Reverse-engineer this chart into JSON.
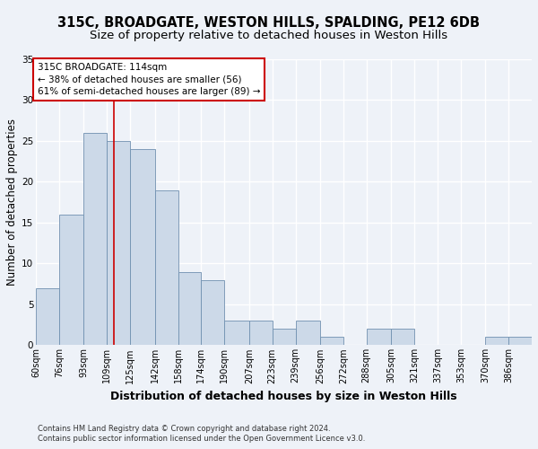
{
  "title": "315C, BROADGATE, WESTON HILLS, SPALDING, PE12 6DB",
  "subtitle": "Size of property relative to detached houses in Weston Hills",
  "xlabel": "Distribution of detached houses by size in Weston Hills",
  "ylabel": "Number of detached properties",
  "footnote1": "Contains HM Land Registry data © Crown copyright and database right 2024.",
  "footnote2": "Contains public sector information licensed under the Open Government Licence v3.0.",
  "annotation_line1": "315C BROADGATE: 114sqm",
  "annotation_line2": "← 38% of detached houses are smaller (56)",
  "annotation_line3": "61% of semi-detached houses are larger (89) →",
  "bar_color": "#ccd9e8",
  "bar_edge_color": "#7090b0",
  "reference_line_x": 114,
  "reference_line_color": "#cc0000",
  "categories": [
    "60sqm",
    "76sqm",
    "93sqm",
    "109sqm",
    "125sqm",
    "142sqm",
    "158sqm",
    "174sqm",
    "190sqm",
    "207sqm",
    "223sqm",
    "239sqm",
    "256sqm",
    "272sqm",
    "288sqm",
    "305sqm",
    "321sqm",
    "337sqm",
    "353sqm",
    "370sqm",
    "386sqm"
  ],
  "bin_edges": [
    60,
    76,
    93,
    109,
    125,
    142,
    158,
    174,
    190,
    207,
    223,
    239,
    256,
    272,
    288,
    305,
    321,
    337,
    353,
    370,
    386,
    402
  ],
  "values": [
    7,
    16,
    26,
    25,
    24,
    19,
    9,
    8,
    3,
    3,
    2,
    3,
    1,
    0,
    2,
    2,
    0,
    0,
    0,
    1,
    1
  ],
  "ylim": [
    0,
    35
  ],
  "yticks": [
    0,
    5,
    10,
    15,
    20,
    25,
    30,
    35
  ],
  "background_color": "#eef2f8",
  "grid_color": "#ffffff",
  "title_fontsize": 10.5,
  "subtitle_fontsize": 9.5,
  "xlabel_fontsize": 9,
  "ylabel_fontsize": 8.5,
  "tick_fontsize": 7,
  "annotation_fontsize": 7.5,
  "footnote_fontsize": 6
}
